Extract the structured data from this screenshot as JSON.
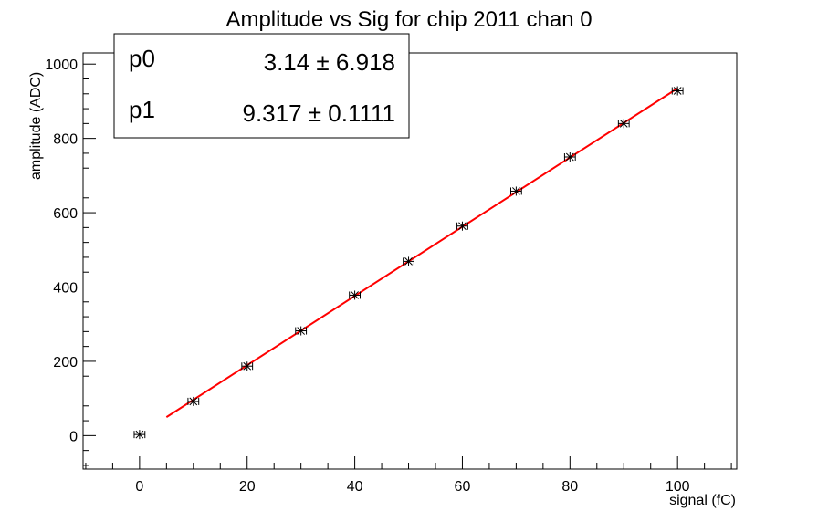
{
  "chart_data": {
    "type": "scatter",
    "title": "Amplitude vs Sig for chip 2011 chan 0",
    "xlabel": "signal (fC)",
    "ylabel": "amplitude (ADC)",
    "xlim": [
      -10.5,
      111
    ],
    "ylim": [
      -90,
      1030
    ],
    "xticks": [
      0,
      20,
      40,
      60,
      80,
      100
    ],
    "yticks": [
      0,
      200,
      400,
      600,
      800,
      1000
    ],
    "grid": false,
    "series": [
      {
        "marker": "star",
        "color": "#000000",
        "x": [
          0,
          10,
          20,
          30,
          40,
          50,
          60,
          70,
          80,
          90,
          100
        ],
        "y": [
          3,
          92,
          187,
          282,
          378,
          469,
          564,
          658,
          750,
          840,
          928
        ],
        "xerr": 1
      }
    ],
    "fit": {
      "color": "#ff0000",
      "x_range": [
        5,
        100
      ],
      "p0": 3.14,
      "p1": 9.317
    },
    "stats_box": {
      "rows": [
        {
          "name": "p0",
          "value": "3.14 ± 6.918"
        },
        {
          "name": "p1",
          "value": "9.317 ± 0.1111"
        }
      ]
    }
  }
}
